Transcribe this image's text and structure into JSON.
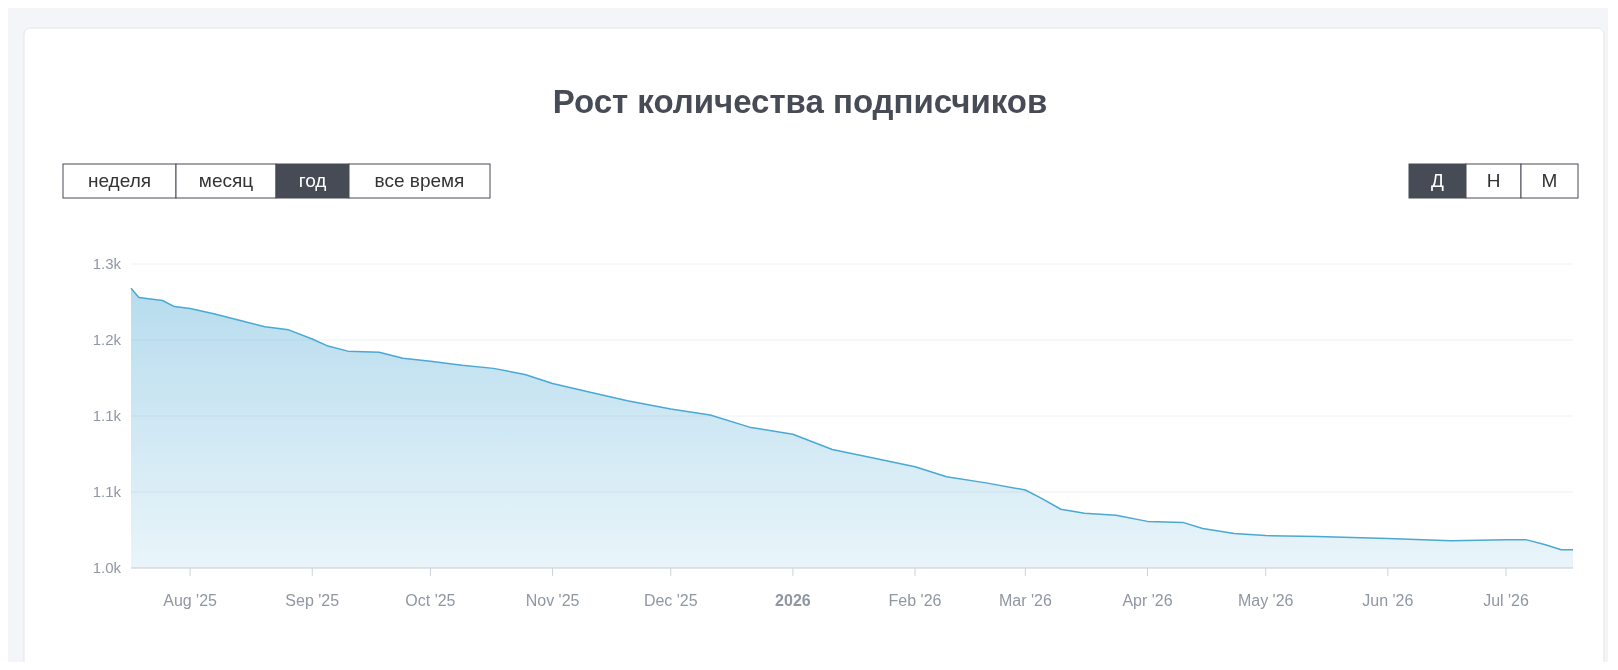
{
  "chart_data": {
    "type": "area",
    "title": "Рост количества подписчиков",
    "annotations": [
      "неделя",
      "месяц",
      "год",
      "все время",
      "Д",
      "Н",
      "М"
    ],
    "series": [
      {
        "color": "#4aa8d4",
        "x": [
          "2025-07-17",
          "2025-07-19",
          "2025-07-25",
          "2025-07-28",
          "2025-08-01",
          "2025-08-07",
          "2025-08-14",
          "2025-08-20",
          "2025-08-26",
          "2025-09-01",
          "2025-09-05",
          "2025-09-10",
          "2025-09-18",
          "2025-09-24",
          "2025-10-01",
          "2025-10-09",
          "2025-10-17",
          "2025-10-25",
          "2025-11-01",
          "2025-11-10",
          "2025-11-20",
          "2025-12-01",
          "2025-12-11",
          "2025-12-21",
          "2026-01-01",
          "2026-01-11",
          "2026-01-22",
          "2026-02-01",
          "2026-02-09",
          "2026-02-19",
          "2026-03-01",
          "2026-03-05",
          "2026-03-10",
          "2026-03-16",
          "2026-03-24",
          "2026-04-01",
          "2026-04-10",
          "2026-04-15",
          "2026-04-23",
          "2026-05-01",
          "2026-05-14",
          "2026-06-01",
          "2026-06-17",
          "2026-07-01",
          "2026-07-06",
          "2026-07-11",
          "2026-07-15",
          "2026-07-18"
        ],
        "values": [
          1276,
          1267,
          1264,
          1258,
          1256,
          1251,
          1244,
          1238,
          1235,
          1226,
          1219,
          1214,
          1213,
          1207,
          1204,
          1200,
          1197,
          1191,
          1182,
          1174,
          1165,
          1157,
          1151,
          1139,
          1132,
          1117,
          1108,
          1100,
          1090,
          1084,
          1077,
          1069,
          1058,
          1054,
          1052,
          1046,
          1045,
          1039,
          1034,
          1032,
          1031,
          1029,
          1027,
          1028,
          1028,
          1023,
          1018,
          1018
        ]
      }
    ],
    "xlim": [
      "2025-07-17",
      "2026-07-18"
    ],
    "xticks": [
      {
        "value": "2025-08-01",
        "label": "Aug '25"
      },
      {
        "value": "2025-09-01",
        "label": "Sep '25"
      },
      {
        "value": "2025-10-01",
        "label": "Oct '25"
      },
      {
        "value": "2025-11-01",
        "label": "Nov '25"
      },
      {
        "value": "2025-12-01",
        "label": "Dec '25"
      },
      {
        "value": "2026-01-01",
        "label": "2026"
      },
      {
        "value": "2026-02-01",
        "label": "Feb '26"
      },
      {
        "value": "2026-03-01",
        "label": "Mar '26"
      },
      {
        "value": "2026-04-01",
        "label": "Apr '26"
      },
      {
        "value": "2026-05-01",
        "label": "May '26"
      },
      {
        "value": "2026-06-01",
        "label": "Jun '26"
      },
      {
        "value": "2026-07-01",
        "label": "Jul '26"
      }
    ],
    "ylim": [
      1000,
      1300
    ],
    "yticks": [
      {
        "value": 1000,
        "label": "1.0k"
      },
      {
        "value": 1075,
        "label": "1.1k"
      },
      {
        "value": 1150,
        "label": "1.1k"
      },
      {
        "value": 1225,
        "label": "1.2k"
      },
      {
        "value": 1300,
        "label": "1.3k"
      }
    ],
    "grid": "y"
  }
}
